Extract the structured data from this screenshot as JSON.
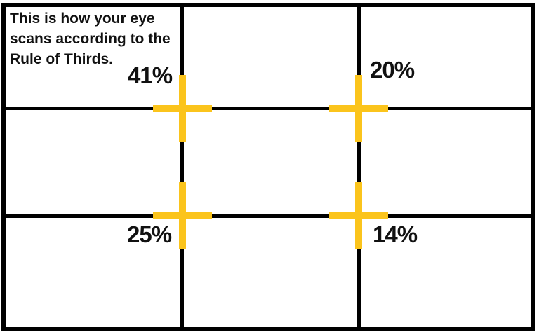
{
  "diagram": {
    "type": "rule-of-thirds-eye-scan",
    "grid": {
      "rows": 3,
      "cols": 3
    },
    "caption": {
      "text": "This is how your eye\nscans according to the\nRule of Thirds."
    },
    "annotations": [
      {
        "position": "top-left-intersection",
        "value": "41%"
      },
      {
        "position": "top-right-intersection",
        "value": "20%"
      },
      {
        "position": "bottom-left-intersection",
        "value": "25%"
      },
      {
        "position": "bottom-right-intersection",
        "value": "14%"
      }
    ],
    "colors": {
      "background": "#FFFFFF",
      "grid_line": "#000000",
      "cross_marker": "#FBC41C",
      "text": "#111111"
    }
  }
}
